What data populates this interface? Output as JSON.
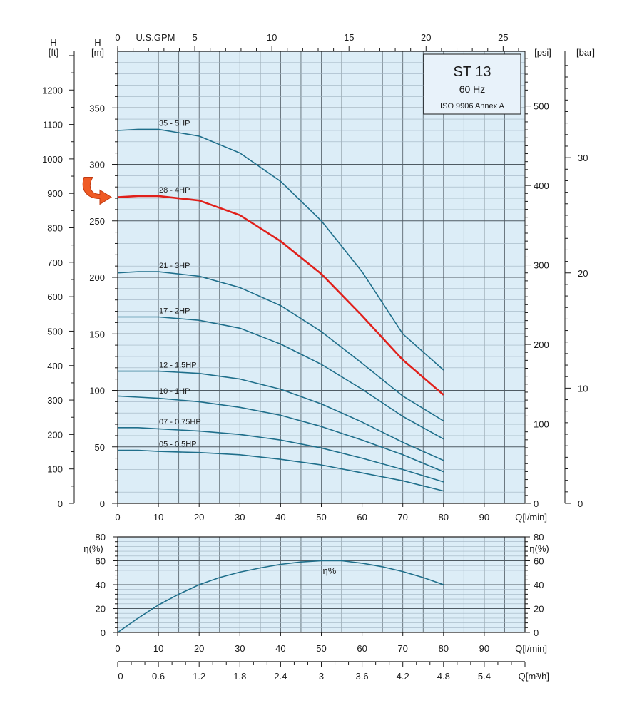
{
  "chart_data": [
    {
      "type": "line",
      "title": "ST 13",
      "subtitle": "60 Hz",
      "standard": "ISO 9906 Annex A",
      "xlabel": "Q[l/min]",
      "ylabel": "H [m]",
      "xlim": [
        0,
        100
      ],
      "ylim": [
        0,
        400
      ],
      "x_ticks": [
        0,
        10,
        20,
        30,
        40,
        50,
        60,
        70,
        80,
        90
      ],
      "y_ticks": [
        0,
        50,
        100,
        150,
        200,
        250,
        300,
        350
      ],
      "grid": true,
      "top_axis": {
        "label": "U.S.GPM",
        "ticks": [
          0,
          5,
          10,
          15,
          20,
          25
        ]
      },
      "left_outer_axis": {
        "label_line1": "H",
        "label_line2": "[ft]",
        "ticks": [
          0,
          100,
          200,
          300,
          400,
          500,
          600,
          700,
          800,
          900,
          1000,
          1100,
          1200
        ]
      },
      "left_inner_axis": {
        "label_line1": "H",
        "label_line2": "[m]"
      },
      "psi_axis": {
        "label": "[psi]",
        "ticks": [
          0,
          100,
          200,
          300,
          400,
          500
        ]
      },
      "bar_axis": {
        "label": "[bar]",
        "ticks": [
          0,
          10,
          20,
          30
        ]
      },
      "highlight_series": "28 - 4HP",
      "series": [
        {
          "name": "35 - 5HP",
          "color": "#1f6f8b",
          "x": [
            0,
            5,
            10,
            20,
            30,
            40,
            50,
            60,
            70,
            80
          ],
          "y": [
            330,
            331,
            331,
            325,
            310,
            285,
            250,
            205,
            150,
            118
          ]
        },
        {
          "name": "28 - 4HP",
          "color": "#e0201b",
          "x": [
            0,
            5,
            10,
            20,
            30,
            40,
            50,
            60,
            70,
            80
          ],
          "y": [
            271,
            272,
            272,
            268,
            255,
            232,
            203,
            166,
            127,
            96
          ]
        },
        {
          "name": "21 - 3HP",
          "color": "#1f6f8b",
          "x": [
            0,
            5,
            10,
            20,
            30,
            40,
            50,
            60,
            70,
            80
          ],
          "y": [
            204,
            205,
            205,
            201,
            191,
            175,
            152,
            124,
            95,
            73
          ]
        },
        {
          "name": "17 - 2HP",
          "color": "#1f6f8b",
          "x": [
            0,
            5,
            10,
            20,
            30,
            40,
            50,
            60,
            70,
            80
          ],
          "y": [
            165,
            165,
            165,
            162,
            155,
            141,
            123,
            101,
            77,
            57
          ]
        },
        {
          "name": "12 - 1.5HP",
          "color": "#1f6f8b",
          "x": [
            0,
            5,
            10,
            20,
            30,
            40,
            50,
            60,
            70,
            80
          ],
          "y": [
            117,
            117,
            117,
            115,
            110,
            101,
            88,
            72,
            54,
            38
          ]
        },
        {
          "name": "10 - 1HP",
          "color": "#1f6f8b",
          "x": [
            0,
            5,
            10,
            20,
            30,
            40,
            50,
            60,
            70,
            80
          ],
          "y": [
            95,
            94,
            93,
            90,
            85,
            78,
            68,
            56,
            43,
            28
          ]
        },
        {
          "name": "07 - 0.75HP",
          "color": "#1f6f8b",
          "x": [
            0,
            5,
            10,
            20,
            30,
            40,
            50,
            60,
            70,
            80
          ],
          "y": [
            67,
            67,
            66,
            64,
            61,
            56,
            49,
            40,
            30,
            19
          ]
        },
        {
          "name": "05 - 0.5HP",
          "color": "#1f6f8b",
          "x": [
            0,
            5,
            10,
            20,
            30,
            40,
            50,
            60,
            70,
            80
          ],
          "y": [
            47,
            47,
            46,
            45,
            43,
            39,
            34,
            27,
            20,
            11
          ]
        }
      ]
    },
    {
      "type": "line",
      "xlabel": "Q[l/min]",
      "ylabel": "η(%)",
      "xlim": [
        0,
        100
      ],
      "ylim": [
        0,
        80
      ],
      "x_ticks": [
        0,
        10,
        20,
        30,
        40,
        50,
        60,
        70,
        80,
        90
      ],
      "y_ticks": [
        0,
        20,
        40,
        60,
        80
      ],
      "grid": true,
      "bottom_axis": {
        "label": "Q[m³/h]",
        "ticks": [
          "0",
          "0.6",
          "1.2",
          "1.8",
          "2.4",
          "3",
          "3.6",
          "4.2",
          "4.8",
          "5.4"
        ]
      },
      "series": [
        {
          "name": "η%",
          "color": "#1f6f8b",
          "x": [
            0,
            5,
            10,
            15,
            20,
            25,
            30,
            35,
            40,
            45,
            50,
            55,
            60,
            65,
            70,
            75,
            80
          ],
          "y": [
            0,
            12,
            23,
            32,
            40,
            46,
            50.5,
            54,
            57,
            59,
            60,
            60,
            58,
            55,
            51,
            46,
            40
          ]
        }
      ]
    }
  ]
}
